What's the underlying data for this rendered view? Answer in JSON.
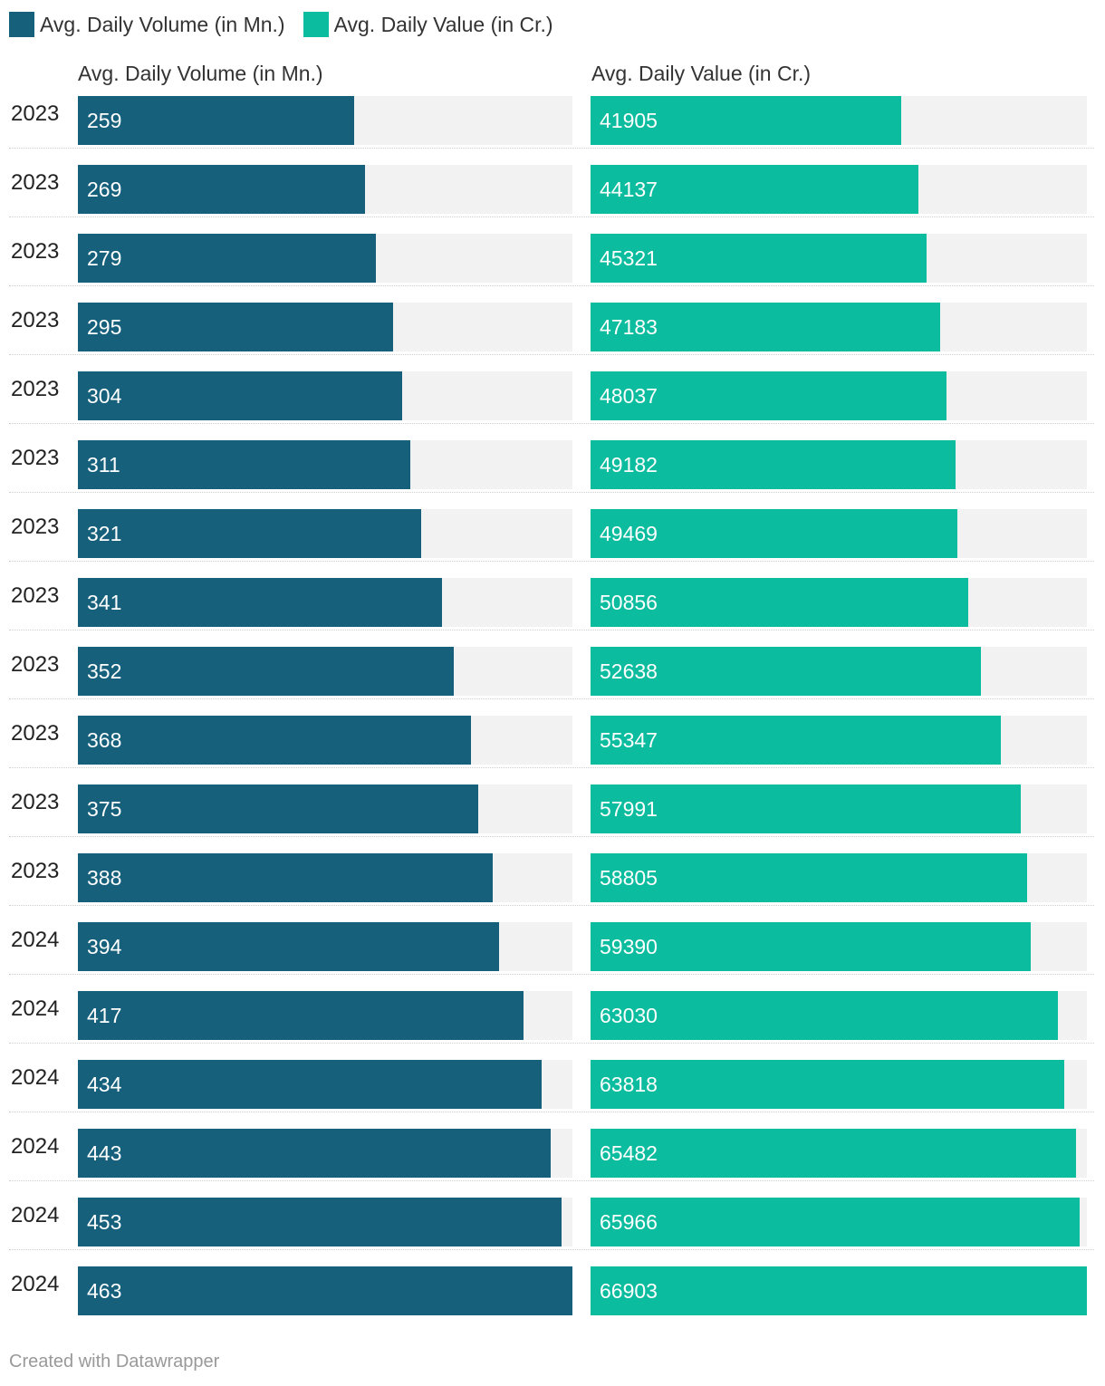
{
  "legend": [
    {
      "label": "Avg. Daily Volume (in Mn.)",
      "color": "#17607c"
    },
    {
      "label": "Avg. Daily Value (in Cr.)",
      "color": "#0bbc9f"
    }
  ],
  "chart_data": {
    "type": "bar",
    "orientation": "horizontal",
    "layout": "split-bars",
    "categories": [
      "2023",
      "2023",
      "2023",
      "2023",
      "2023",
      "2023",
      "2023",
      "2023",
      "2023",
      "2023",
      "2023",
      "2023",
      "2024",
      "2024",
      "2024",
      "2024",
      "2024",
      "2024"
    ],
    "series": [
      {
        "name": "Avg. Daily Volume (in Mn.)",
        "color": "#17607c",
        "values": [
          259,
          269,
          279,
          295,
          304,
          311,
          321,
          341,
          352,
          368,
          375,
          388,
          394,
          417,
          434,
          443,
          453,
          463
        ]
      },
      {
        "name": "Avg. Daily Value (in Cr.)",
        "color": "#0bbc9f",
        "values": [
          41905,
          44137,
          45321,
          47183,
          48037,
          49182,
          49469,
          50856,
          52638,
          55347,
          57991,
          58805,
          59390,
          63030,
          63818,
          65482,
          65966,
          66903
        ]
      }
    ],
    "legend_position": "top-left",
    "grid": false
  },
  "footer": {
    "credit": "Created with Datawrapper"
  }
}
